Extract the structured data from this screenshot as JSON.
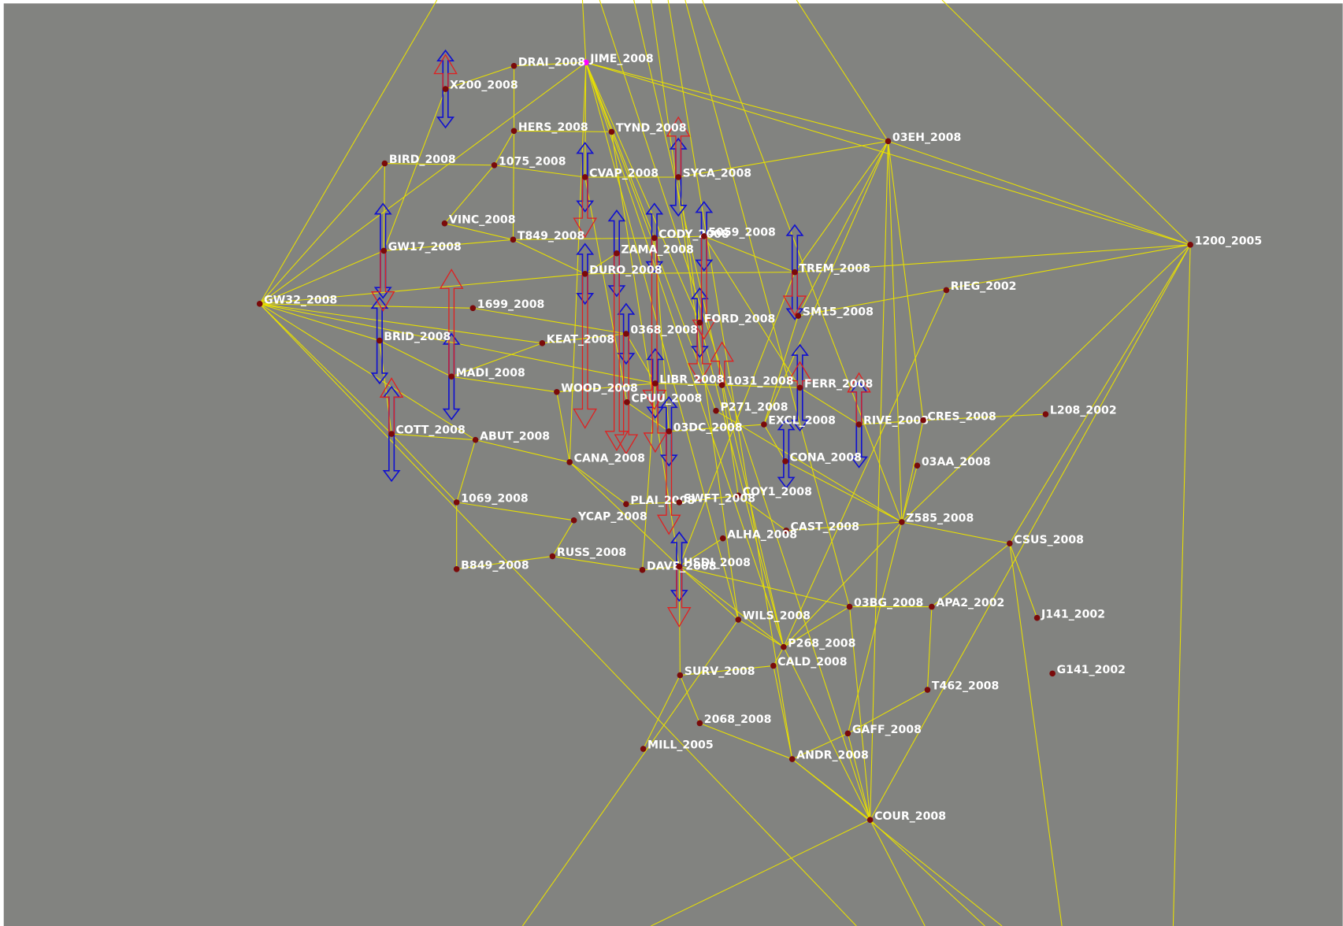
{
  "nodes": [
    {
      "label": "JIME_2008"
    },
    {
      "label": "DRAI_2008"
    },
    {
      "label": "X200_2008"
    },
    {
      "label": "HERS_2008"
    },
    {
      "label": "TYND_2008"
    },
    {
      "label": "BIRD_2008"
    },
    {
      "label": "1075_2008"
    },
    {
      "label": "CVAP_2008"
    },
    {
      "label": "SYCA_2008"
    },
    {
      "label": "03EH_2008"
    },
    {
      "label": "1200_2005"
    },
    {
      "label": "VINC_2008"
    },
    {
      "label": "T849_2008"
    },
    {
      "label": "CODY_2008"
    },
    {
      "label": "5059_2008"
    },
    {
      "label": "ZAMA_2008"
    },
    {
      "label": "GW17_2008"
    },
    {
      "label": "DURO_2008"
    },
    {
      "label": "TREM_2008"
    },
    {
      "label": "RIEG_2002"
    },
    {
      "label": "GW32_2008"
    },
    {
      "label": "1699_2008"
    },
    {
      "label": "SM15_2008"
    },
    {
      "label": "FORD_2008"
    },
    {
      "label": "0368_2008"
    },
    {
      "label": "BRID_2008"
    },
    {
      "label": "KEAT_2008"
    },
    {
      "label": "MADI_2008"
    },
    {
      "label": "LIBR_2008"
    },
    {
      "label": "1031_2008"
    },
    {
      "label": "FERR_2008"
    },
    {
      "label": "WOOD_2008"
    },
    {
      "label": "CPUU_2008"
    },
    {
      "label": "P271_2008"
    },
    {
      "label": "EXCL_2008"
    },
    {
      "label": "RIVE_2008"
    },
    {
      "label": "CRES_2008"
    },
    {
      "label": "L208_2002"
    },
    {
      "label": "03DC_2008"
    },
    {
      "label": "COTT_2008"
    },
    {
      "label": "ABUT_2008"
    },
    {
      "label": "CANA_2008"
    },
    {
      "label": "CONA_2008"
    },
    {
      "label": "03AA_2008"
    },
    {
      "label": "COY1_2008"
    },
    {
      "label": "1069_2008"
    },
    {
      "label": "PLAI_2008"
    },
    {
      "label": "SWFT_2008"
    },
    {
      "label": "YCAP_2008"
    },
    {
      "label": "Z585_2008"
    },
    {
      "label": "CAST_2008"
    },
    {
      "label": "ALHA_2008"
    },
    {
      "label": "CSUS_2008"
    },
    {
      "label": "RUSS_2008"
    },
    {
      "label": "DAVE_2008"
    },
    {
      "label": "HSDI_2008"
    },
    {
      "label": "B849_2008"
    },
    {
      "label": "03BG_2008"
    },
    {
      "label": "APA2_2002"
    },
    {
      "label": "WILS_2008"
    },
    {
      "label": "J141_2002"
    },
    {
      "label": "P268_2008"
    },
    {
      "label": "CALD_2008"
    },
    {
      "label": "SURV_2008"
    },
    {
      "label": "G141_2002"
    },
    {
      "label": "T462_2008"
    },
    {
      "label": "2068_2008"
    },
    {
      "label": "GAFF_2008"
    },
    {
      "label": "MILL_2005"
    },
    {
      "label": "ANDR_2008"
    },
    {
      "label": "COUR_2008"
    }
  ]
}
